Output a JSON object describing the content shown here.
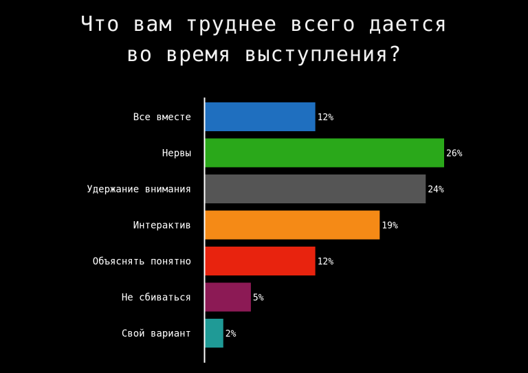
{
  "chart_data": {
    "type": "bar",
    "orientation": "horizontal",
    "title_lines": [
      "Что вам труднее всего дается",
      "во время выступления?"
    ],
    "categories": [
      "Все вместе",
      "Нервы",
      "Удержание внимания",
      "Интерактив",
      "Объяснять понятно",
      "Не сбиваться",
      "Свой вариант"
    ],
    "values": [
      12,
      26,
      24,
      19,
      12,
      5,
      2
    ],
    "value_labels": [
      "12%",
      "26%",
      "24%",
      "19%",
      "12%",
      "5%",
      "2%"
    ],
    "colors": [
      "#1f6fbf",
      "#2aa81a",
      "#555555",
      "#f58a16",
      "#e8230e",
      "#8c1a55",
      "#1f9a96"
    ],
    "xlim": [
      0,
      26
    ],
    "grid": false,
    "legend": "none"
  }
}
